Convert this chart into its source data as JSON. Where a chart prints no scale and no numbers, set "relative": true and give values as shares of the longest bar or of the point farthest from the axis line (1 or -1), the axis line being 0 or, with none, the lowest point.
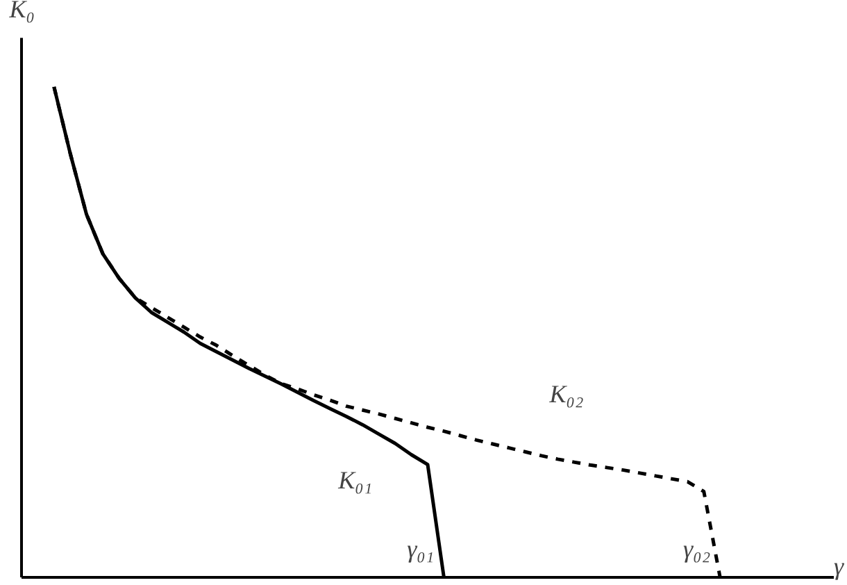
{
  "chart_data": {
    "type": "line",
    "relative": true,
    "xlabel": "γ",
    "ylabel": "K₀",
    "categories": [
      null,
      null,
      null,
      null,
      null,
      null,
      null,
      null,
      null,
      null,
      null,
      null,
      null,
      null,
      null,
      null,
      null,
      null,
      null,
      null,
      null,
      null,
      null,
      null,
      null,
      null,
      null,
      null,
      null,
      null,
      null,
      null,
      null,
      null,
      null,
      null,
      null,
      null,
      null,
      null,
      null,
      null
    ],
    "series": [
      {
        "color": "#000000",
        "line_style": "solid",
        "values": [
          1.0,
          0.864,
          0.74,
          0.66,
          0.61,
          0.57,
          0.54,
          0.52,
          0.5,
          0.477,
          0.46,
          0.443,
          0.426,
          0.41,
          0.394,
          0.377,
          0.36,
          0.344,
          0.328,
          0.311,
          0.292,
          0.273,
          0.25,
          0.23,
          0,
          null,
          null,
          null,
          null,
          null,
          null,
          null,
          null,
          null,
          null,
          null,
          null,
          null,
          null,
          null,
          null,
          null
        ]
      },
      {
        "color": "#000000",
        "line_style": "dashed",
        "values": [
          1.0,
          0.864,
          0.74,
          0.66,
          0.61,
          0.57,
          0.55,
          0.53,
          0.51,
          0.49,
          0.473,
          0.452,
          0.432,
          0.412,
          0.395,
          0.384,
          0.372,
          0.361,
          0.349,
          0.341,
          0.333,
          0.324,
          0.315,
          0.306,
          0.298,
          0.289,
          0.28,
          0.272,
          0.264,
          0.256,
          0.248,
          0.241,
          0.235,
          0.229,
          0.224,
          0.219,
          0.213,
          0.207,
          0.201,
          0.195,
          0.175,
          0
        ]
      }
    ],
    "annotations": [
      "K₀₁",
      "K₀₂",
      "γ₀₁",
      "γ₀₂"
    ]
  }
}
